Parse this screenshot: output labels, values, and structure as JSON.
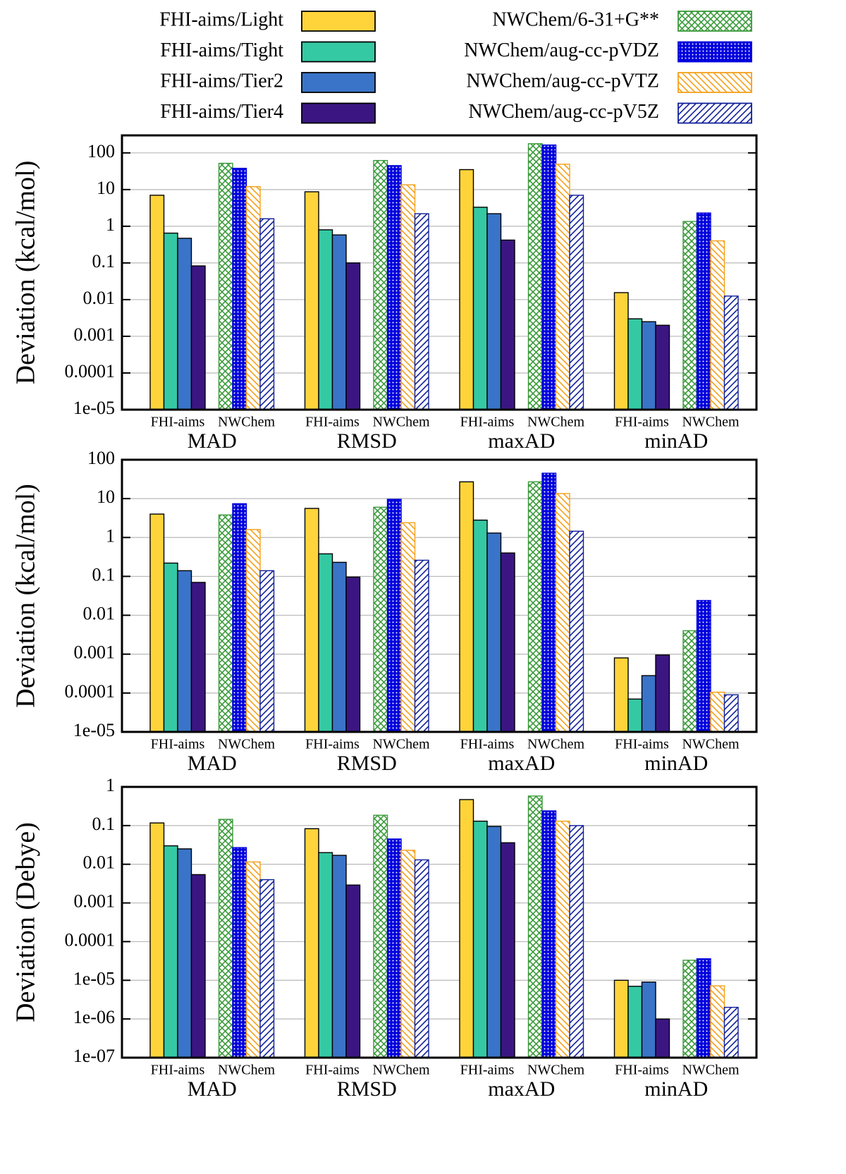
{
  "legend": [
    {
      "name": "FHI-aims/Light",
      "color": "#ffd43b"
    },
    {
      "name": "FHI-aims/Tight",
      "color": "#35c9a3"
    },
    {
      "name": "FHI-aims/Tier2",
      "color": "#3a74c8"
    },
    {
      "name": "FHI-aims/Tier4",
      "color": "#3b1683"
    },
    {
      "name": "NWChem/6-31+G**",
      "color": "#3a9a3a",
      "pattern": "crosshatch"
    },
    {
      "name": "NWChem/aug-cc-pVDZ",
      "color": "#0000dd",
      "pattern": "dots"
    },
    {
      "name": "NWChem/aug-cc-pVTZ",
      "color": "#f5a01a",
      "pattern": "back-diagonal"
    },
    {
      "name": "NWChem/aug-cc-pV5Z",
      "color": "#10209a",
      "pattern": "diagonal"
    }
  ],
  "chart_data": [
    {
      "type": "bar",
      "ylabel": "Deviation (kcal/mol)",
      "log": true,
      "grid": true,
      "categories": [
        "MAD",
        "RMSD",
        "maxAD",
        "minAD"
      ],
      "groups": [
        "FHI-aims",
        "NWChem"
      ],
      "ylim": [
        1e-05,
        300
      ],
      "yticks": [
        100,
        10,
        1,
        0.1,
        0.01,
        0.001,
        0.0001,
        {
          "value": 1e-05,
          "label": "1e-05"
        }
      ],
      "series": [
        {
          "values": [
            7.0,
            8.7,
            35,
            0.0155
          ]
        },
        {
          "values": [
            0.65,
            0.8,
            3.3,
            0.003
          ]
        },
        {
          "values": [
            0.47,
            0.58,
            2.2,
            0.0025
          ]
        },
        {
          "values": [
            0.083,
            0.1,
            0.42,
            0.002
          ]
        },
        {
          "values": [
            52,
            62,
            178,
            1.35
          ]
        },
        {
          "values": [
            38,
            45,
            164,
            2.3
          ]
        },
        {
          "values": [
            12,
            13.5,
            49,
            0.4
          ]
        },
        {
          "values": [
            1.6,
            2.2,
            7,
            0.0125
          ]
        }
      ]
    },
    {
      "type": "bar",
      "ylabel": "Deviation (kcal/mol)",
      "log": true,
      "grid": true,
      "categories": [
        "MAD",
        "RMSD",
        "maxAD",
        "minAD"
      ],
      "groups": [
        "FHI-aims",
        "NWChem"
      ],
      "ylim": [
        1e-05,
        100
      ],
      "yticks": [
        100,
        10,
        1,
        0.1,
        0.01,
        0.001,
        0.0001,
        {
          "value": 1e-05,
          "label": "1e-05"
        }
      ],
      "series": [
        {
          "values": [
            4.0,
            5.6,
            27,
            0.0008
          ]
        },
        {
          "values": [
            0.22,
            0.38,
            2.8,
            7e-05
          ]
        },
        {
          "values": [
            0.14,
            0.23,
            1.3,
            0.00028
          ]
        },
        {
          "values": [
            0.07,
            0.096,
            0.4,
            0.00095
          ]
        },
        {
          "values": [
            3.8,
            6.0,
            27,
            0.004
          ]
        },
        {
          "values": [
            7.4,
            9.6,
            45,
            0.024
          ]
        },
        {
          "values": [
            1.6,
            2.4,
            13.5,
            0.000105
          ]
        },
        {
          "values": [
            0.14,
            0.26,
            1.45,
            9e-05
          ]
        }
      ]
    },
    {
      "type": "bar",
      "ylabel": "Deviation (Debye)",
      "log": true,
      "grid": true,
      "categories": [
        "MAD",
        "RMSD",
        "maxAD",
        "minAD"
      ],
      "groups": [
        "FHI-aims",
        "NWChem"
      ],
      "ylim": [
        1e-07,
        1
      ],
      "yticks": [
        1,
        0.1,
        0.01,
        0.001,
        0.0001,
        {
          "value": 1e-05,
          "label": "1e-05"
        },
        {
          "value": 1e-06,
          "label": "1e-06"
        },
        {
          "value": 1e-07,
          "label": "1e-07"
        }
      ],
      "series": [
        {
          "values": [
            0.117,
            0.083,
            0.47,
            1e-05
          ]
        },
        {
          "values": [
            0.03,
            0.02,
            0.13,
            7e-06
          ]
        },
        {
          "values": [
            0.025,
            0.017,
            0.095,
            9e-06
          ]
        },
        {
          "values": [
            0.0054,
            0.0029,
            0.036,
            1e-06
          ]
        },
        {
          "values": [
            0.145,
            0.185,
            0.58,
            3.3e-05
          ]
        },
        {
          "values": [
            0.027,
            0.045,
            0.24,
            3.6e-05
          ]
        },
        {
          "values": [
            0.0115,
            0.023,
            0.13,
            7.2e-06
          ]
        },
        {
          "values": [
            0.004,
            0.013,
            0.1,
            2e-06
          ]
        }
      ]
    }
  ]
}
